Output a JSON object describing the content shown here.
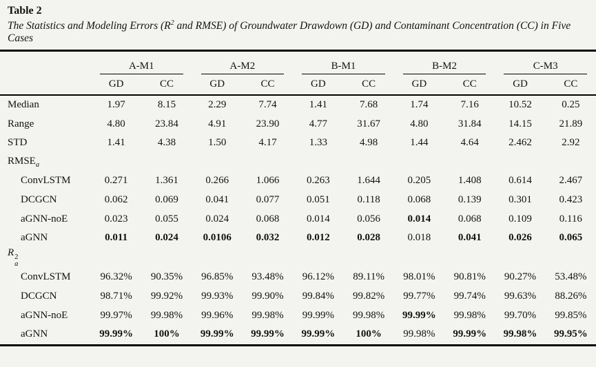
{
  "title": "Table 2",
  "caption": {
    "pre": "The Statistics and Modeling Errors (R",
    "sup": "2",
    "post": " and RMSE) of Groundwater Drawdown (GD) and Contaminant Concentration (CC) in Five Cases"
  },
  "table": {
    "groups": [
      "A-M1",
      "A-M2",
      "B-M1",
      "B-M2",
      "C-M3"
    ],
    "subheaders": [
      "GD",
      "CC"
    ],
    "rows": [
      {
        "kind": "stat",
        "label": "Median",
        "values": [
          "1.97",
          "8.15",
          "2.29",
          "7.74",
          "1.41",
          "7.68",
          "1.74",
          "7.16",
          "10.52",
          "0.25"
        ]
      },
      {
        "kind": "stat",
        "label": "Range",
        "values": [
          "4.80",
          "23.84",
          "4.91",
          "23.90",
          "4.77",
          "31.67",
          "4.80",
          "31.84",
          "14.15",
          "21.89"
        ]
      },
      {
        "kind": "stat",
        "label": "STD",
        "values": [
          "1.41",
          "4.38",
          "1.50",
          "4.17",
          "1.33",
          "4.98",
          "1.44",
          "4.64",
          "2.462",
          "2.92"
        ]
      },
      {
        "kind": "section",
        "base": "RMSE",
        "sup": "",
        "sub": "a",
        "italic": false
      },
      {
        "kind": "model",
        "label": "ConvLSTM",
        "values": [
          "0.271",
          "1.361",
          "0.266",
          "1.066",
          "0.263",
          "1.644",
          "0.205",
          "1.408",
          "0.614",
          "2.467"
        ]
      },
      {
        "kind": "model",
        "label": "DCGCN",
        "values": [
          "0.062",
          "0.069",
          "0.041",
          "0.077",
          "0.051",
          "0.118",
          "0.068",
          "0.139",
          "0.301",
          "0.423"
        ]
      },
      {
        "kind": "model",
        "label": "aGNN-noE",
        "values": [
          "0.023",
          "0.055",
          "0.024",
          "0.068",
          "0.014",
          "0.056",
          "0.014",
          "0.068",
          "0.109",
          "0.116"
        ],
        "bold": [
          0,
          0,
          0,
          0,
          0,
          0,
          1,
          0,
          0,
          0
        ]
      },
      {
        "kind": "model",
        "label": "aGNN",
        "values": [
          "0.011",
          "0.024",
          "0.0106",
          "0.032",
          "0.012",
          "0.028",
          "0.018",
          "0.041",
          "0.026",
          "0.065"
        ],
        "bold": [
          1,
          1,
          1,
          1,
          1,
          1,
          0,
          1,
          1,
          1
        ]
      },
      {
        "kind": "section",
        "base": "R",
        "sup": "2",
        "sub": "a",
        "italic": true
      },
      {
        "kind": "model",
        "label": "ConvLSTM",
        "values": [
          "96.32%",
          "90.35%",
          "96.85%",
          "93.48%",
          "96.12%",
          "89.11%",
          "98.01%",
          "90.81%",
          "90.27%",
          "53.48%"
        ]
      },
      {
        "kind": "model",
        "label": "DCGCN",
        "values": [
          "98.71%",
          "99.92%",
          "99.93%",
          "99.90%",
          "99.84%",
          "99.82%",
          "99.77%",
          "99.74%",
          "99.63%",
          "88.26%"
        ]
      },
      {
        "kind": "model",
        "label": "aGNN-noE",
        "values": [
          "99.97%",
          "99.98%",
          "99.96%",
          "99.98%",
          "99.99%",
          "99.98%",
          "99.99%",
          "99.98%",
          "99.70%",
          "99.85%"
        ],
        "bold": [
          0,
          0,
          0,
          0,
          0,
          0,
          1,
          0,
          0,
          0
        ]
      },
      {
        "kind": "model",
        "label": "aGNN",
        "values": [
          "99.99%",
          "100%",
          "99.99%",
          "99.99%",
          "99.99%",
          "100%",
          "99.98%",
          "99.99%",
          "99.98%",
          "99.95%"
        ],
        "bold": [
          1,
          1,
          1,
          1,
          1,
          1,
          0,
          1,
          1,
          1
        ]
      }
    ]
  }
}
